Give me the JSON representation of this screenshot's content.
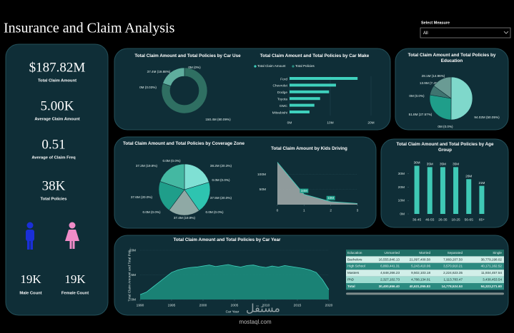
{
  "header": {
    "title": "Insurance and Claim Analysis",
    "select_label": "Select Measure",
    "select_value": "All"
  },
  "kpis": [
    {
      "value": "$187.82M",
      "label": "Total Claim Amount"
    },
    {
      "value": "5.00K",
      "label": "Average Claim Amount"
    },
    {
      "value": "0.51",
      "label": "Average of Claim Freq"
    },
    {
      "value": "38K",
      "label": "Total Policies"
    }
  ],
  "gender": [
    {
      "value": "19K",
      "label": "Male Count"
    },
    {
      "value": "19K",
      "label": "Female Count"
    }
  ],
  "chart_data": [
    {
      "type": "pie",
      "donut": true,
      "title": "Total Claim Amount and Total Policies by Car Use",
      "values": [
        150.4,
        0,
        0,
        37.4
      ],
      "value_labels": [
        "150.4M (80.09%)",
        "0M (0.03%)",
        "0M (0%)",
        "37.4M (19.88%)"
      ],
      "colors": [
        "#2f6f62",
        "#4a8f80",
        "#4a8f80",
        "#5fae9e"
      ]
    },
    {
      "type": "hbar",
      "title": "Total Claim Amount and Total Policies by Car Make",
      "categories": [
        "Ford",
        "Chevrolet",
        "Dodge",
        "Toyota",
        "GMC",
        "Mitsubishi"
      ],
      "series": [
        {
          "name": "Total Claim Amount",
          "color": "#3fd1bd",
          "values": [
            16.7,
            11.4,
            9.7,
            7.5,
            6.1,
            4.9
          ]
        },
        {
          "name": "Total Policies",
          "color": "#2a8f82",
          "values": [
            0.0034,
            0.0023,
            0.0019,
            0.0015,
            0.0012,
            0.001
          ]
        }
      ],
      "xlim": [
        0,
        20
      ],
      "xticks": [
        {
          "value": 0,
          "label": "0M"
        },
        {
          "value": 10,
          "label": "10M"
        },
        {
          "value": 20,
          "label": "20M"
        }
      ]
    },
    {
      "type": "pie",
      "donut": false,
      "title": "Total Claim Amount and Total Policies by Education",
      "values": [
        94.02,
        0,
        51.8,
        0,
        13.9,
        28.1
      ],
      "value_labels": [
        "94.02M (50.05%)",
        "0M (0.0%)",
        "51.8M (27.57%)",
        "0M (0.0%)",
        "13.9M (7.40%)",
        "28.1M (14.96%)"
      ],
      "colors": [
        "#7fd8cb",
        "#2aa894",
        "#1f9e8a",
        "#2aa894",
        "#3f7470",
        "#6a9b94"
      ]
    },
    {
      "type": "pie",
      "donut": false,
      "title": "Total Claim Amount and Total Policies by Coverage Zone",
      "values": [
        38.2,
        0,
        37.5,
        0,
        37.4,
        0,
        37.6,
        37.2,
        0
      ],
      "value_labels": [
        "38.2M (20.3%)",
        "0.0M (0.0%)",
        "37.5M (20.0%)",
        "0.0M (0.0%)",
        "37.4M (19.9%)",
        "0.0M (0.0%)",
        "37.6M (20.0%)",
        "37.2M (19.8%)",
        "0.0M (0.0%)"
      ],
      "colors": [
        "#7fe0d4",
        "#2ec4b0",
        "#2ec4b0",
        "#1f9e8a",
        "#8fa9a5",
        "#1f9e8a",
        "#1f9e8a",
        "#44b8a2",
        "#44b8a2"
      ]
    },
    {
      "type": "area",
      "title": "Total Claim Amount by Kids Driving",
      "x": [
        0,
        1,
        2,
        3
      ],
      "values": [
        140,
        34,
        10,
        3.8
      ],
      "value_labels": [
        null,
        "34M",
        "10M",
        null
      ],
      "xlim": [
        0,
        3
      ],
      "xticks": [
        0,
        1,
        2,
        3
      ],
      "ylim": [
        0,
        160
      ],
      "yticks": [
        {
          "value": 50,
          "label": "50M"
        },
        {
          "value": 100,
          "label": "100M"
        }
      ],
      "color": "#9ea7a7"
    },
    {
      "type": "bar",
      "title": "Total Claim Amount and Total Policies by Age Group",
      "categories": [
        "36-45",
        "46-55",
        "26-35",
        "18-25",
        "56-65",
        "65+"
      ],
      "values": [
        36,
        35,
        35,
        35,
        26,
        21
      ],
      "value_labels": [
        "36M",
        "35M",
        "35M",
        "35M",
        "26M",
        "21M"
      ],
      "ylim": [
        0,
        40
      ],
      "yticks": [
        {
          "value": 0,
          "label": "0M"
        },
        {
          "value": 10,
          "label": "10M"
        },
        {
          "value": 20,
          "label": "20M"
        },
        {
          "value": 30,
          "label": "30M"
        }
      ],
      "color": "#3fc9b5"
    },
    {
      "type": "area",
      "title": "Total Claim Amount and Total Policies by Car Year",
      "xlabel": "Car Year",
      "ylabel": "Total Claim Amount and Total Poli...",
      "x": [
        1990,
        1991,
        1992,
        1993,
        1994,
        1995,
        1996,
        1997,
        1998,
        1999,
        2000,
        2001,
        2002,
        2003,
        2004,
        2005,
        2006,
        2007,
        2008,
        2009,
        2010,
        2011,
        2012,
        2013,
        2014,
        2015,
        2016,
        2017,
        2018,
        2019,
        2020
      ],
      "values": [
        1.0,
        1.5,
        2.5,
        3.5,
        4.5,
        5.5,
        6.0,
        6.3,
        6.5,
        6.6,
        6.8,
        7.0,
        6.7,
        6.9,
        7.1,
        6.8,
        6.6,
        6.9,
        7.0,
        6.7,
        6.5,
        6.8,
        6.6,
        6.9,
        6.7,
        6.5,
        6.3,
        6.0,
        5.5,
        4.0,
        2.0
      ],
      "xlim": [
        1990,
        2020
      ],
      "xticks": [
        1990,
        1995,
        2000,
        2005,
        2010,
        2015,
        2020
      ],
      "ylim": [
        0,
        10
      ],
      "yticks": [
        {
          "value": 0,
          "label": "0M"
        },
        {
          "value": 5,
          "label": "5M"
        },
        {
          "value": 10,
          "label": "10M"
        }
      ],
      "color": "#1c8c7c"
    }
  ],
  "table": {
    "columns": [
      "Education",
      "Unmarried",
      "Married",
      "Separated",
      "Single"
    ],
    "rows": [
      [
        "Bachelors",
        "16,555,846.13",
        "21,097,408.58",
        "7,869,207.50",
        "38,779,198.02"
      ],
      [
        "High School",
        "6,869,441.31",
        "5,243,410.06",
        "3,570,910.21",
        "40,171,162.52"
      ],
      [
        "Masters",
        "4,648,266.23",
        "9,502,103.18",
        "2,224,623.35",
        "11,934,457.54"
      ],
      [
        "PhD",
        "2,327,102.73",
        "4,788,134.01",
        "1,113,783.47",
        "3,438,453.54"
      ],
      [
        "Total",
        "30,400,656.40",
        "40,631,055.83",
        "14,778,524.53",
        "94,323,271.60"
      ]
    ]
  },
  "watermark": {
    "arabic": "مستقل",
    "latin": "mostaql.com"
  }
}
